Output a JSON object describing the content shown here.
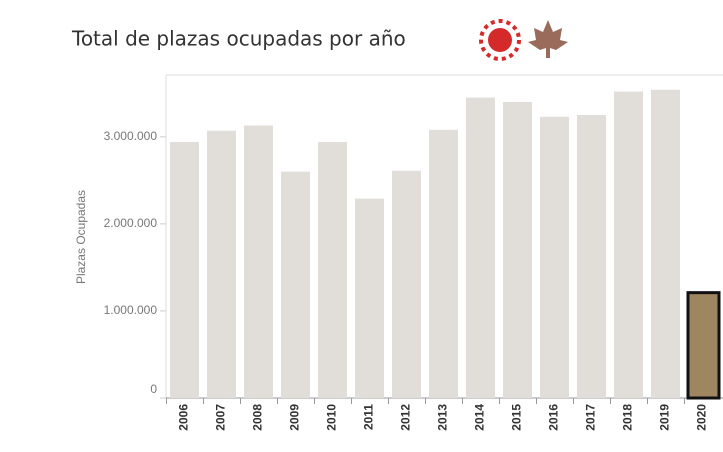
{
  "chart_data": {
    "type": "bar",
    "title": "Total de plazas ocupadas por año",
    "y_label": "Plazas Ocupadas",
    "categories": [
      "2006",
      "2007",
      "2008",
      "2009",
      "2010",
      "2011",
      "2012",
      "2013",
      "2014",
      "2015",
      "2016",
      "2017",
      "2018",
      "2019",
      "2020"
    ],
    "values": [
      2940000,
      3070000,
      3130000,
      2600000,
      2940000,
      2290000,
      2610000,
      3080000,
      3450000,
      3400000,
      3230000,
      3250000,
      3520000,
      3540000,
      1210000
    ],
    "color": "#e1ddd8",
    "colors": [
      "#e1ddd8",
      "#e1ddd8",
      "#e1ddd8",
      "#e1ddd8",
      "#e1ddd8",
      "#e1ddd8",
      "#e1ddd8",
      "#e1ddd8",
      "#e1ddd8",
      "#e1ddd8",
      "#e1ddd8",
      "#e1ddd8",
      "#e1ddd8",
      "#e1ddd8",
      "#9e8660"
    ],
    "ylim": [
      0,
      3710000
    ],
    "yticks": [
      0,
      {
        "value": 1000000,
        "label": "1.000.000"
      },
      {
        "value": 2000000,
        "label": "2.000.000"
      },
      {
        "value": 3000000,
        "label": "3.000.000"
      }
    ]
  }
}
